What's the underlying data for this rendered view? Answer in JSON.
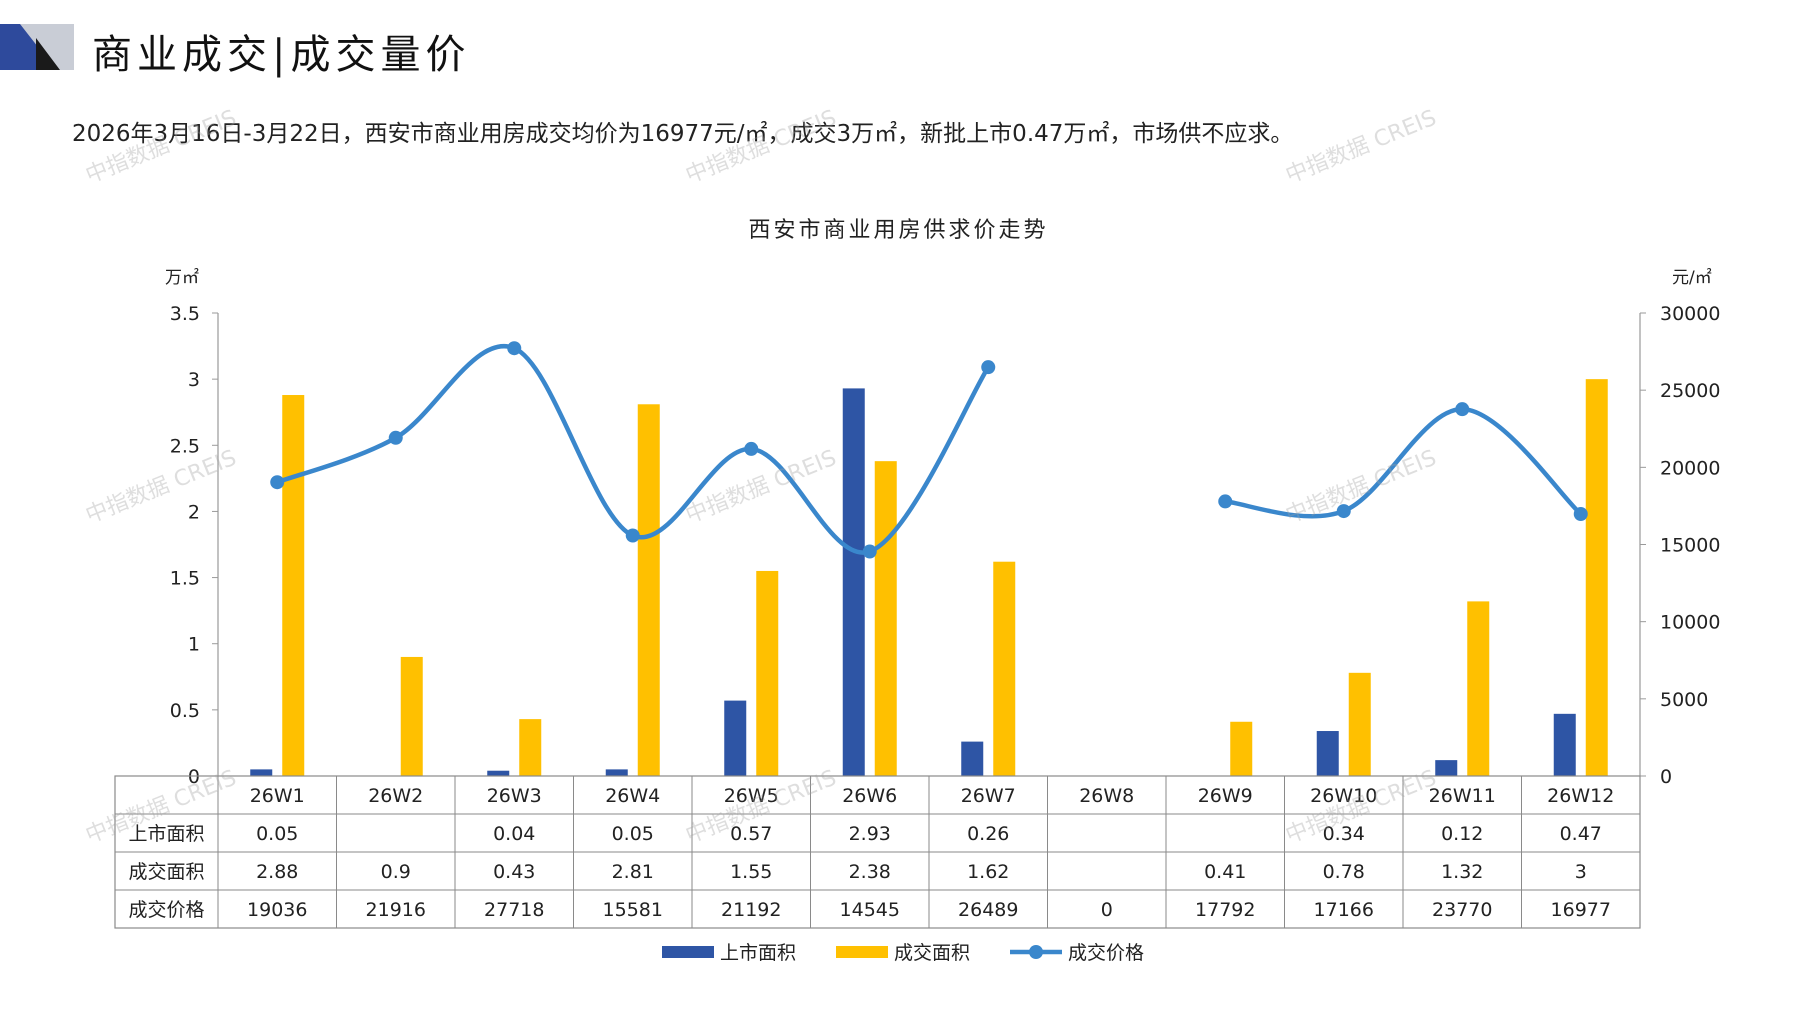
{
  "header": {
    "title": "商业成交|成交量价",
    "summary": "2026年3月16日-3月22日，西安市商业用房成交均价为16977元/㎡，成交3万㎡，新批上市0.47万㎡，市场供不应求。"
  },
  "watermark": "中指数据 CREIS",
  "colors": {
    "supply": "#2E55A5",
    "deal_area": "#FFC000",
    "price": "#3A87CC",
    "logo_dark": "#2E4A9C",
    "logo_light": "#C9CDD6"
  },
  "chart_data": {
    "type": "bar",
    "title": "西安市商业用房供求价走势",
    "categories": [
      "26W1",
      "26W2",
      "26W3",
      "26W4",
      "26W5",
      "26W6",
      "26W7",
      "26W8",
      "26W9",
      "26W10",
      "26W11",
      "26W12"
    ],
    "series": [
      {
        "name": "上市面积",
        "type": "bar",
        "axis": "left",
        "values": [
          0.05,
          null,
          0.04,
          0.05,
          0.57,
          2.93,
          0.26,
          null,
          null,
          0.34,
          0.12,
          0.47
        ]
      },
      {
        "name": "成交面积",
        "type": "bar",
        "axis": "left",
        "values": [
          2.88,
          0.9,
          0.43,
          2.81,
          1.55,
          2.38,
          1.62,
          null,
          0.41,
          0.78,
          1.32,
          3
        ]
      },
      {
        "name": "成交价格",
        "type": "line",
        "axis": "right",
        "values": [
          19036,
          21916,
          27718,
          15581,
          21192,
          14545,
          26489,
          0,
          17792,
          17166,
          23770,
          16977
        ]
      }
    ],
    "y_left": {
      "unit": "万㎡",
      "min": 0,
      "max": 3.5,
      "ticks": [
        "0",
        "0.5",
        "1",
        "1.5",
        "2",
        "2.5",
        "3",
        "3.5"
      ]
    },
    "y_right": {
      "unit": "元/㎡",
      "min": 0,
      "max": 30000,
      "ticks": [
        "0",
        "5000",
        "10000",
        "15000",
        "20000",
        "25000",
        "30000"
      ]
    },
    "table_rows": [
      {
        "label": "上市面积",
        "cells": [
          "0.05",
          "",
          "0.04",
          "0.05",
          "0.57",
          "2.93",
          "0.26",
          "",
          "",
          "0.34",
          "0.12",
          "0.47"
        ]
      },
      {
        "label": "成交面积",
        "cells": [
          "2.88",
          "0.9",
          "0.43",
          "2.81",
          "1.55",
          "2.38",
          "1.62",
          "",
          "0.41",
          "0.78",
          "1.32",
          "3"
        ]
      },
      {
        "label": "成交价格",
        "cells": [
          "19036",
          "21916",
          "27718",
          "15581",
          "21192",
          "14545",
          "26489",
          "0",
          "17792",
          "17166",
          "23770",
          "16977"
        ]
      }
    ],
    "legend": [
      "上市面积",
      "成交面积",
      "成交价格"
    ],
    "legend_position": "bottom-center",
    "grid": false
  }
}
